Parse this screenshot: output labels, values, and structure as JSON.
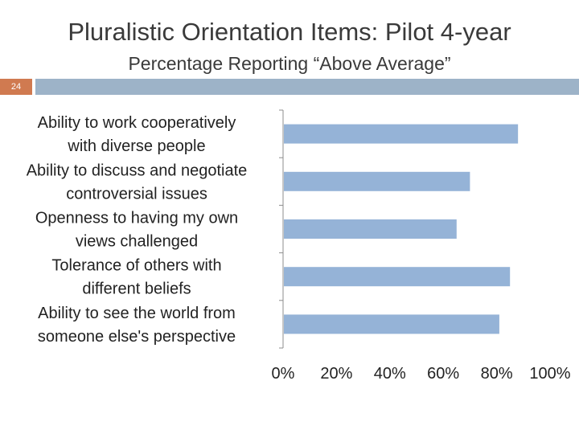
{
  "slide": {
    "title": "Pluralistic Orientation Items: Pilot 4-year",
    "subtitle": "Percentage Reporting “Above Average”",
    "number": "24"
  },
  "colors": {
    "bar": "#95b3d7",
    "accent_band": "#9db3c8",
    "slide_number_bg": "#d07a50"
  },
  "chart_data": {
    "type": "bar",
    "orientation": "horizontal",
    "title": "",
    "xlabel": "",
    "ylabel": "",
    "xlim": [
      0,
      100
    ],
    "grid": false,
    "categories": [
      [
        "Ability to work cooperatively",
        "with diverse people"
      ],
      [
        "Ability to discuss and negotiate",
        "controversial issues"
      ],
      [
        "Openness to having my own",
        "views challenged"
      ],
      [
        "Tolerance of others with",
        "different beliefs"
      ],
      [
        "Ability to see the world from",
        "someone else's perspective"
      ]
    ],
    "values": [
      88,
      70,
      65,
      85,
      81
    ],
    "ticks": [
      0,
      20,
      40,
      60,
      80,
      100
    ],
    "tick_labels": [
      "0%",
      "20%",
      "40%",
      "60%",
      "80%",
      "100%"
    ]
  }
}
